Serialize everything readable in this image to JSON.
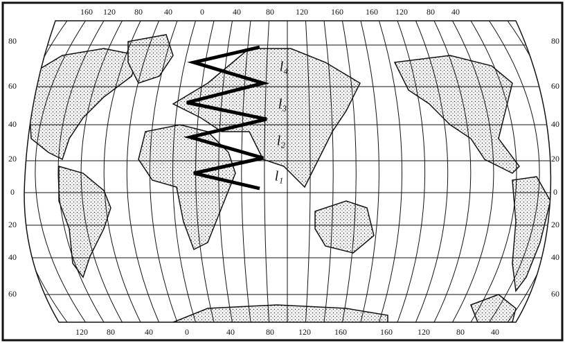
{
  "top_labels": [
    "160",
    "120",
    "80",
    "40",
    "0",
    "40",
    "80",
    "120",
    "160",
    "160",
    "120",
    "80",
    "40"
  ],
  "bottom_labels": [
    "120",
    "80",
    "40",
    "0",
    "40",
    "80",
    "120",
    "160",
    "160",
    "120",
    "80",
    "40"
  ],
  "left_labels": [
    "80",
    "60",
    "40",
    "20",
    "0",
    "20",
    "40",
    "60"
  ],
  "right_labels": [
    "80",
    "60",
    "40",
    "20",
    "0",
    "20",
    "40",
    "60"
  ],
  "annotations": [
    "l₄",
    "l₃",
    "l₂",
    "l₁"
  ]
}
